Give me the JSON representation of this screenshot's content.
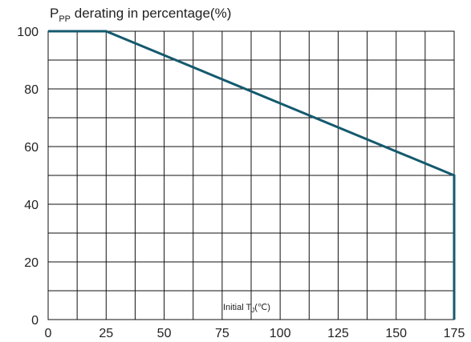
{
  "chart_data": {
    "type": "line",
    "title": "",
    "ylabel": {
      "main": "P",
      "sub": "PP",
      "rest": " derating in percentage(%)"
    },
    "xlabel": {
      "main": "Initial T",
      "sub": "J",
      "rest": "(℃)"
    },
    "xlim": [
      0,
      175
    ],
    "ylim": [
      0,
      100
    ],
    "xticks": [
      0,
      25,
      50,
      75,
      100,
      125,
      150,
      175
    ],
    "yticks": [
      0,
      20,
      40,
      60,
      80,
      100
    ],
    "grid": true,
    "grid_x_step": 12.5,
    "grid_y_step": 10,
    "series": [
      {
        "x": [
          0,
          25,
          175,
          175
        ],
        "y": [
          100,
          100,
          50,
          0
        ],
        "color": "#145a6e"
      }
    ]
  }
}
